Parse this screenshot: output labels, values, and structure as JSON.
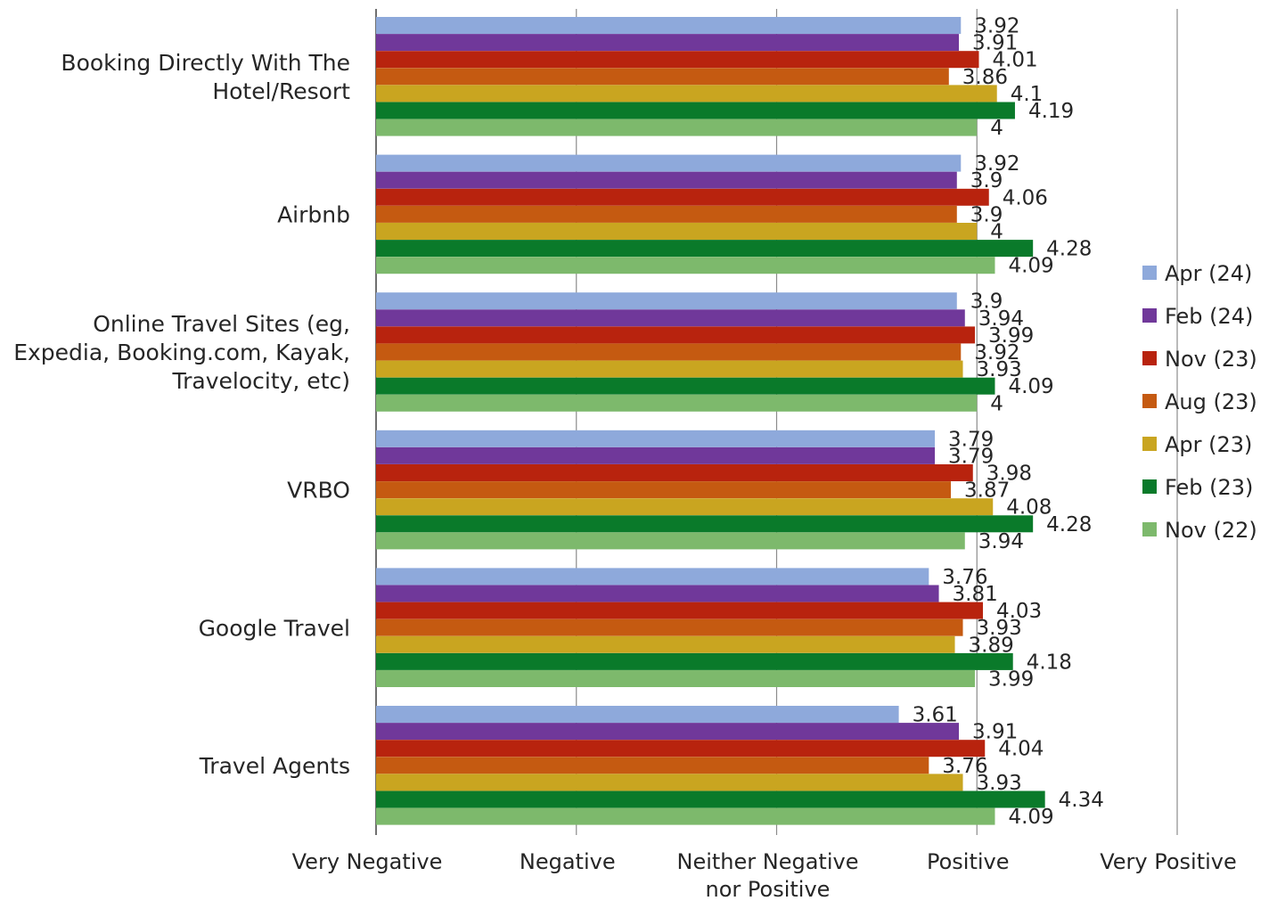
{
  "chart_data": {
    "type": "bar",
    "orientation": "horizontal",
    "title": "",
    "xlabel": "",
    "ylabel": "",
    "xlim": [
      1,
      5
    ],
    "x_ticks": [
      {
        "value": 1,
        "label": "Very Negative"
      },
      {
        "value": 2,
        "label": "Negative"
      },
      {
        "value": 3,
        "label": "Neither Negative nor Positive"
      },
      {
        "value": 4,
        "label": "Positive"
      },
      {
        "value": 5,
        "label": "Very Positive"
      }
    ],
    "grid": "vertical",
    "legend": "right",
    "categories": [
      "Booking Directly With The Hotel/Resort",
      "Airbnb",
      "Online Travel Sites (eg, Expedia, Booking.com, Kayak, Travelocity, etc)",
      "VRBO",
      "Google Travel",
      "Travel Agents"
    ],
    "series": [
      {
        "name": "Apr (24)",
        "color": "#8EA9DB",
        "values": [
          3.92,
          3.92,
          3.9,
          3.79,
          3.76,
          3.61
        ]
      },
      {
        "name": "Feb (24)",
        "color": "#70389A",
        "values": [
          3.91,
          3.9,
          3.94,
          3.79,
          3.81,
          3.91
        ]
      },
      {
        "name": "Nov (23)",
        "color": "#B8230E",
        "values": [
          4.01,
          4.06,
          3.99,
          3.98,
          4.03,
          4.04
        ]
      },
      {
        "name": "Aug (23)",
        "color": "#C55A11",
        "values": [
          3.86,
          3.9,
          3.92,
          3.87,
          3.93,
          3.76
        ]
      },
      {
        "name": "Apr (23)",
        "color": "#C9A520",
        "values": [
          4.1,
          4,
          3.93,
          4.08,
          3.89,
          3.93
        ]
      },
      {
        "name": "Feb (23)",
        "color": "#0A7A2A",
        "values": [
          4.19,
          4.28,
          4.09,
          4.28,
          4.18,
          4.34
        ]
      },
      {
        "name": "Nov (22)",
        "color": "#7DB96C",
        "values": [
          4,
          4.09,
          4,
          3.94,
          3.99,
          4.09
        ]
      }
    ]
  }
}
